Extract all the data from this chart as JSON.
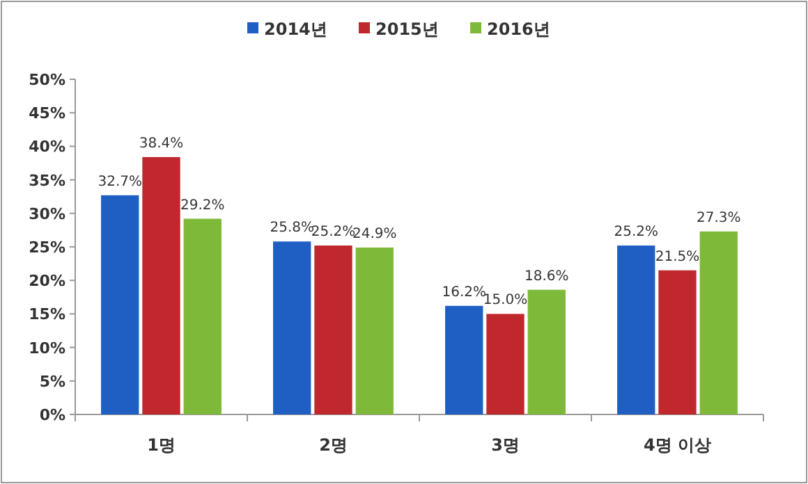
{
  "chart_data": {
    "type": "bar",
    "categories": [
      "1명",
      "2명",
      "3명",
      "4명 이상"
    ],
    "series": [
      {
        "name": "2014년",
        "color": "#1f5fc4",
        "values": [
          32.7,
          25.8,
          16.2,
          25.2
        ]
      },
      {
        "name": "2015년",
        "color": "#c0282d",
        "values": [
          38.4,
          25.2,
          15.0,
          21.5
        ]
      },
      {
        "name": "2016년",
        "color": "#7fb93a",
        "values": [
          29.2,
          24.9,
          18.6,
          27.3
        ]
      }
    ],
    "ylim": [
      0,
      50
    ],
    "yticks": [
      {
        "value": 0,
        "label": "0%"
      },
      {
        "value": 5,
        "label": "5%"
      },
      {
        "value": 10,
        "label": "10%"
      },
      {
        "value": 15,
        "label": "15%"
      },
      {
        "value": 20,
        "label": "20%"
      },
      {
        "value": 25,
        "label": "25%"
      },
      {
        "value": 30,
        "label": "30%"
      },
      {
        "value": 35,
        "label": "35%"
      },
      {
        "value": 40,
        "label": "40%"
      },
      {
        "value": 45,
        "label": "45%"
      },
      {
        "value": 50,
        "label": "50%"
      }
    ],
    "value_labels": [
      [
        "32.7%",
        "25.8%",
        "16.2%",
        "25.2%"
      ],
      [
        "38.4%",
        "25.2%",
        "15.0%",
        "21.5%"
      ],
      [
        "29.2%",
        "24.9%",
        "18.6%",
        "27.3%"
      ]
    ],
    "legend": "top",
    "grid": false
  }
}
